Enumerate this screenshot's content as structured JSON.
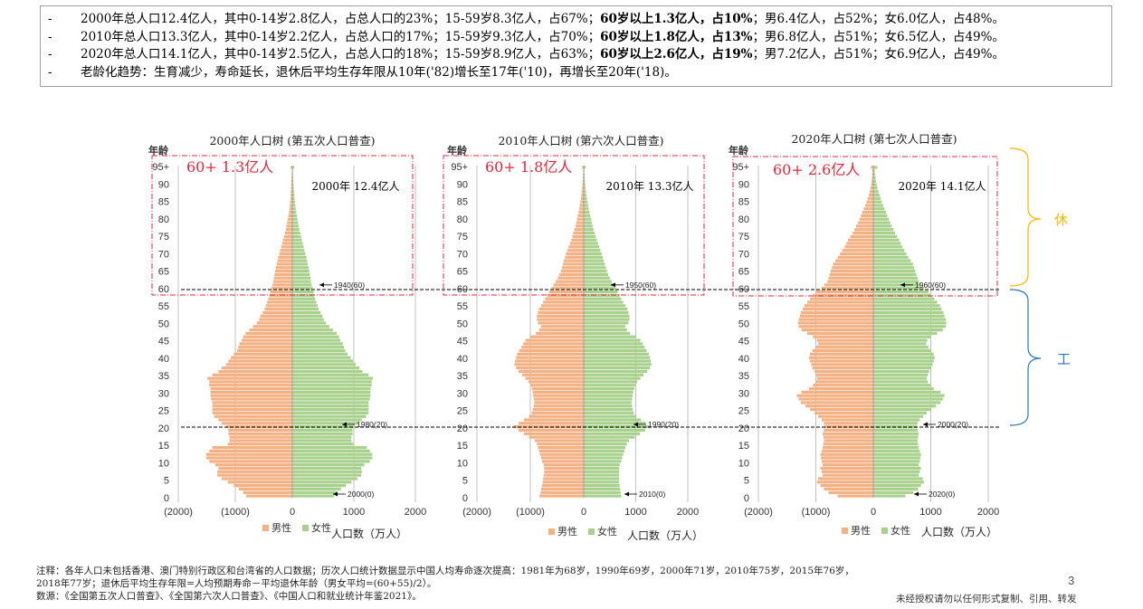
{
  "summary": {
    "l1": {
      "dash": "-",
      "a": "2000年总人口12.4亿人，其中0-14岁2.8亿人，占总人口的23%；15-59岁8.3亿人，占67%；",
      "b": "60岁以上1.3亿人，占10%",
      "c": "；男6.4亿人，占52%；女6.0亿人，占48%。"
    },
    "l2": {
      "dash": "-",
      "a": "2010年总人口13.3亿人，其中0-14岁2.2亿人，占总人口的17%；15-59岁9.3亿人，占70%；",
      "b": "60岁以上1.8亿人，占13%",
      "c": "；男6.8亿人，占51%；女6.5亿人，占49%。"
    },
    "l3": {
      "dash": "-",
      "a": "2020年总人口14.1亿人，其中0-14岁2.5亿人，占总人口的18%；15-59岁8.9亿人，占63%；",
      "b": "60岁以上2.6亿人，占19%",
      "c": "；男7.2亿人，占51%；女6.9亿人，占49%。"
    },
    "l4": {
      "dash": "-",
      "a": "老龄化趋势：生育减少，寿命延长，退休后平均生存年限从10年('82)增长至17年('10)，再增长至20年('18)。"
    }
  },
  "side_labels": {
    "rest": "休",
    "work": "工"
  },
  "footnote": {
    "line1": "注释：各年人口未包括香港、澳门特别行政区和台湾省的人口数据；历次人口统计数据显示中国人均寿命逐次提高：1981年为68岁，1990年69岁，2000年71岁，2010年75岁，2015年76岁，",
    "line2": "2018年77岁；退休后平均生存年限=人均预期寿命－平均退休年龄（男女平均=(60+55)/2）。",
    "line3": "数源：《全国第五次人口普查》、《全国第六次人口普查》、《中国人口和就业统计年鉴2021》。"
  },
  "page_number": "3",
  "disclaimer": "未经授权请勿以任何形式复制、引用、转发",
  "colors": {
    "male": "#F4B183",
    "female": "#A9D18E",
    "red": "#E0283C",
    "rest_brace": "#F2B800",
    "work_brace": "#2E75B6",
    "grid": "#A6A6A6"
  },
  "chart_data": [
    {
      "type": "bar",
      "title": "2000年人口树 (第五次人口普查)",
      "ylabel": "年龄",
      "xlabel": "人口数（万人）",
      "x_ticks": [
        "(2000)",
        "(1000)",
        "0",
        "1000",
        "2000"
      ],
      "x_range": [
        -2000,
        2000
      ],
      "y_ticks": [
        "0",
        "5",
        "10",
        "15",
        "20",
        "25",
        "30",
        "35",
        "40",
        "45",
        "50",
        "55",
        "60",
        "65",
        "70",
        "75",
        "80",
        "85",
        "90",
        "95+"
      ],
      "legend": [
        "男性",
        "女性"
      ],
      "total_label": "2000年 12.4亿人",
      "elderly_label": "60+ 1.3亿人",
      "marker_top": "1940(60)",
      "marker_mid": "1980(20)",
      "marker_bottom": "2000(0)",
      "male": [
        750,
        800,
        870,
        950,
        1050,
        1150,
        1220,
        1220,
        1200,
        1250,
        1350,
        1400,
        1400,
        1350,
        1300,
        1050,
        1020,
        1020,
        1040,
        1040,
        1070,
        1150,
        1200,
        1270,
        1300,
        1300,
        1300,
        1300,
        1320,
        1330,
        1330,
        1330,
        1350,
        1350,
        1380,
        1300,
        1200,
        1150,
        1080,
        1040,
        1000,
        950,
        900,
        880,
        860,
        820,
        800,
        760,
        700,
        640,
        580,
        540,
        520,
        480,
        450,
        430,
        410,
        390,
        370,
        360,
        340,
        320,
        310,
        300,
        290,
        280,
        270,
        255,
        240,
        230,
        210,
        195,
        180,
        165,
        150,
        135,
        120,
        105,
        95,
        85,
        75,
        65,
        55,
        48,
        42,
        36,
        30,
        26,
        22,
        19,
        16,
        14,
        12,
        10,
        8,
        25
      ],
      "female": [
        680,
        720,
        790,
        870,
        960,
        1060,
        1120,
        1130,
        1120,
        1170,
        1260,
        1300,
        1300,
        1260,
        1210,
        990,
        960,
        960,
        980,
        980,
        1010,
        1080,
        1130,
        1200,
        1240,
        1240,
        1240,
        1240,
        1260,
        1270,
        1270,
        1270,
        1290,
        1290,
        1310,
        1240,
        1140,
        1090,
        1030,
        990,
        950,
        900,
        860,
        840,
        820,
        780,
        760,
        720,
        660,
        600,
        550,
        510,
        490,
        460,
        430,
        410,
        390,
        370,
        355,
        345,
        330,
        315,
        305,
        295,
        285,
        275,
        265,
        250,
        240,
        228,
        212,
        198,
        184,
        170,
        156,
        142,
        128,
        114,
        104,
        94,
        84,
        74,
        64,
        56,
        50,
        43,
        36,
        31,
        27,
        23,
        20,
        17,
        14,
        12,
        10,
        32
      ]
    },
    {
      "type": "bar",
      "title": "2010年人口树 (第六次人口普查)",
      "ylabel": "年龄",
      "xlabel": "人口数（万人）",
      "x_ticks": [
        "(2000)",
        "(1000)",
        "0",
        "1000",
        "2000"
      ],
      "x_range": [
        -2000,
        2000
      ],
      "y_ticks": [
        "0",
        "5",
        "10",
        "15",
        "20",
        "25",
        "30",
        "35",
        "40",
        "45",
        "50",
        "55",
        "60",
        "65",
        "70",
        "75",
        "80",
        "85",
        "90",
        "95+"
      ],
      "legend": [
        "男性",
        "女性"
      ],
      "total_label": "2010年 13.3亿人",
      "elderly_label": "60+ 1.8亿人",
      "marker_top": "1950(60)",
      "marker_mid": "1990(20)",
      "marker_bottom": "2010(0)",
      "male": [
        850,
        830,
        820,
        800,
        790,
        780,
        770,
        760,
        760,
        770,
        800,
        820,
        840,
        860,
        880,
        900,
        940,
        1050,
        1150,
        1250,
        1350,
        1250,
        1150,
        1050,
        1000,
        980,
        960,
        950,
        960,
        970,
        980,
        1000,
        1020,
        1060,
        1120,
        1180,
        1250,
        1300,
        1330,
        1320,
        1300,
        1280,
        1240,
        1200,
        1160,
        1120,
        1020,
        920,
        860,
        820,
        880,
        900,
        900,
        880,
        860,
        820,
        780,
        740,
        700,
        660,
        620,
        580,
        540,
        500,
        470,
        440,
        420,
        400,
        380,
        360,
        340,
        315,
        290,
        265,
        240,
        220,
        200,
        180,
        160,
        145,
        130,
        115,
        100,
        88,
        76,
        65,
        55,
        46,
        38,
        31,
        25,
        20,
        16,
        13,
        10,
        30
      ],
      "female": [
        720,
        710,
        700,
        690,
        680,
        680,
        680,
        680,
        680,
        690,
        720,
        740,
        760,
        780,
        800,
        830,
        870,
        980,
        1080,
        1180,
        1280,
        1190,
        1100,
        1010,
        960,
        940,
        930,
        920,
        930,
        940,
        950,
        970,
        990,
        1030,
        1090,
        1150,
        1220,
        1270,
        1300,
        1290,
        1270,
        1250,
        1210,
        1170,
        1130,
        1090,
        990,
        890,
        830,
        800,
        860,
        880,
        880,
        860,
        840,
        800,
        760,
        720,
        690,
        650,
        610,
        570,
        535,
        500,
        470,
        445,
        425,
        405,
        385,
        365,
        345,
        322,
        298,
        274,
        250,
        230,
        210,
        190,
        172,
        157,
        142,
        126,
        111,
        98,
        86,
        74,
        64,
        54,
        45,
        37,
        30,
        24,
        19,
        15,
        12,
        40
      ]
    },
    {
      "type": "bar",
      "title": "2020年人口树 (第七次人口普查)",
      "ylabel": "年龄",
      "xlabel": "人口数（万人）",
      "x_ticks": [
        "(2000)",
        "(1000)",
        "0",
        "1000",
        "2000"
      ],
      "x_range": [
        -2000,
        2000
      ],
      "y_ticks": [
        "0",
        "5",
        "10",
        "15",
        "20",
        "25",
        "30",
        "35",
        "40",
        "45",
        "50",
        "55",
        "60",
        "65",
        "70",
        "75",
        "80",
        "85",
        "90",
        "95+"
      ],
      "legend": [
        "男性",
        "女性"
      ],
      "total_label": "2020年 14.1亿人",
      "elderly_label": "60+ 2.6亿人",
      "marker_top": "1960(60)",
      "marker_mid": "2000(20)",
      "marker_bottom": "2020(0)",
      "male": [
        620,
        780,
        860,
        920,
        980,
        960,
        880,
        900,
        920,
        880,
        900,
        910,
        920,
        900,
        880,
        870,
        860,
        870,
        880,
        860,
        850,
        860,
        900,
        960,
        1020,
        1100,
        1180,
        1260,
        1300,
        1330,
        1250,
        1120,
        1050,
        1000,
        980,
        1000,
        1020,
        1060,
        1080,
        1100,
        1120,
        1100,
        1060,
        1000,
        960,
        980,
        1050,
        1150,
        1250,
        1300,
        1310,
        1300,
        1280,
        1260,
        1230,
        1200,
        1150,
        1100,
        1050,
        1000,
        900,
        850,
        800,
        780,
        760,
        740,
        720,
        700,
        660,
        620,
        580,
        540,
        500,
        470,
        440,
        400,
        360,
        330,
        300,
        270,
        240,
        215,
        190,
        165,
        140,
        118,
        98,
        80,
        64,
        50,
        38,
        30,
        24,
        19,
        15,
        40
      ],
      "female": [
        560,
        700,
        780,
        830,
        880,
        860,
        790,
        810,
        830,
        790,
        810,
        820,
        830,
        810,
        790,
        780,
        770,
        780,
        790,
        770,
        760,
        770,
        810,
        870,
        930,
        1010,
        1090,
        1170,
        1210,
        1240,
        1170,
        1050,
        990,
        950,
        930,
        950,
        970,
        1010,
        1030,
        1050,
        1070,
        1050,
        1010,
        960,
        920,
        940,
        1010,
        1110,
        1210,
        1260,
        1270,
        1260,
        1240,
        1220,
        1190,
        1160,
        1110,
        1060,
        1010,
        960,
        880,
        830,
        790,
        770,
        750,
        730,
        710,
        690,
        650,
        610,
        575,
        540,
        505,
        480,
        450,
        415,
        380,
        350,
        322,
        295,
        268,
        242,
        218,
        194,
        170,
        148,
        128,
        108,
        90,
        74,
        60,
        48,
        38,
        30,
        24,
        70
      ]
    }
  ]
}
